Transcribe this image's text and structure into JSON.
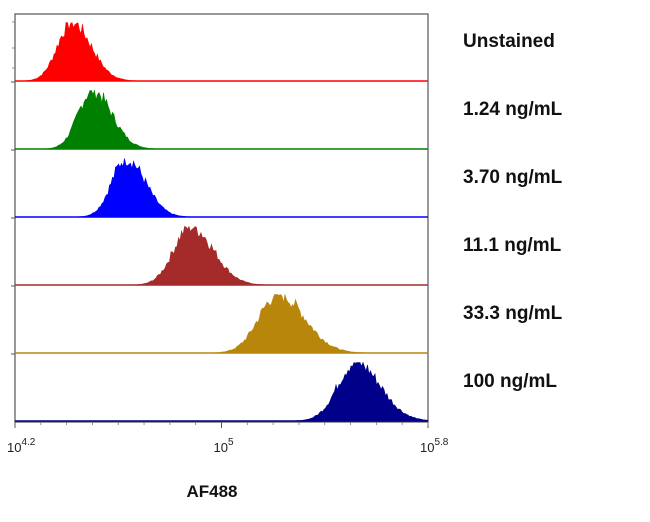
{
  "chart_data": {
    "type": "histogram-overlay",
    "title": "",
    "xlabel": "AF488",
    "ylabel": "",
    "x_scale": "log10",
    "xlim": [
      4.2,
      5.8
    ],
    "x_ticks": [
      {
        "base": "10",
        "exp": "4.2",
        "value": 4.2
      },
      {
        "base": "10",
        "exp": "5",
        "value": 5.0
      },
      {
        "base": "10",
        "exp": "5.8",
        "value": 5.8
      }
    ],
    "series": [
      {
        "name": "Unstained",
        "color": "#ff0000",
        "peak_log10": 4.42,
        "width": 0.055,
        "skew": 0.02
      },
      {
        "name": "1.24 ng/mL",
        "color": "#008000",
        "peak_log10": 4.5,
        "width": 0.055,
        "skew": 0.02
      },
      {
        "name": "3.70 ng/mL",
        "color": "#0000ff",
        "peak_log10": 4.63,
        "width": 0.055,
        "skew": 0.02
      },
      {
        "name": "11.1 ng/mL",
        "color": "#a52a2a",
        "peak_log10": 4.88,
        "width": 0.065,
        "skew": 0.02
      },
      {
        "name": "33.3 ng/mL",
        "color": "#b8860b",
        "peak_log10": 5.22,
        "width": 0.075,
        "skew": 0.03
      },
      {
        "name": "100 ng/mL",
        "color": "#00008b",
        "peak_log10": 5.52,
        "width": 0.07,
        "skew": 0.02
      }
    ]
  }
}
